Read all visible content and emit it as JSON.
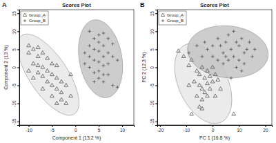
{
  "chart_data": [
    {
      "type": "scatter",
      "panel_label": "A",
      "title": "Scores Plot",
      "x_label": "Component 1 (13.2 %)",
      "y_label": "Component 2 (13 %)",
      "xlim": [
        -12,
        12.5
      ],
      "ylim": [
        -16,
        16
      ],
      "xticks": [
        -10,
        -5,
        0,
        5,
        10
      ],
      "yticks": [
        -15,
        -10,
        -5,
        0,
        5,
        10,
        15
      ],
      "legend": "top-left",
      "series": [
        {
          "name": "Group_A",
          "marker": "triangle",
          "color": "#e8e8e8",
          "x": [
            -10,
            -9,
            -8,
            -10,
            -8,
            -7,
            -6,
            -9,
            -8,
            -7,
            -5,
            -6,
            -4,
            -8,
            -7,
            -5,
            -4,
            -6,
            -3,
            -5,
            -7,
            -4,
            -3,
            -2,
            -5,
            -3,
            -2,
            -1,
            -4,
            -9,
            -1,
            -10
          ],
          "y": [
            6,
            5,
            5.5,
            4,
            3,
            4,
            2.5,
            1,
            0.5,
            0,
            1,
            -1,
            0.5,
            -1.5,
            -2.5,
            -2,
            -3,
            -4,
            -4,
            -5,
            -6,
            -6,
            -7,
            -5,
            -8,
            -9,
            -10,
            -8,
            -10,
            -3,
            -2,
            -1
          ]
        },
        {
          "name": "Group_B",
          "marker": "plus",
          "color": "#c4c4c4",
          "x": [
            3,
            5,
            6,
            4,
            7,
            5,
            3,
            6,
            8,
            4,
            5,
            7,
            2,
            3,
            6,
            8,
            4,
            5,
            6,
            7,
            3,
            5,
            6,
            4,
            7,
            5,
            6,
            8,
            4,
            9,
            2,
            9
          ],
          "y": [
            10,
            9,
            9.5,
            8,
            8,
            7,
            6,
            6,
            6.5,
            5,
            4.5,
            4,
            4,
            3,
            3,
            3,
            2,
            1.5,
            0.5,
            1,
            0,
            -1,
            -2,
            -1.5,
            -2,
            -3,
            -4,
            -5,
            -4,
            -5.5,
            1,
            2
          ]
        }
      ]
    },
    {
      "type": "scatter",
      "panel_label": "B",
      "title": "Scores Plot",
      "x_label": "PC 1 (16.8 %)",
      "y_label": "PC 2 (12.3 %)",
      "xlim": [
        -21,
        22.5
      ],
      "ylim": [
        -16,
        16
      ],
      "xticks": [
        -20,
        -10,
        0,
        10,
        20
      ],
      "yticks": [
        -15,
        -10,
        -5,
        0,
        5,
        10,
        15
      ],
      "legend": "top-left",
      "series": [
        {
          "name": "Group_A",
          "marker": "triangle",
          "color": "#e8e8e8",
          "x": [
            -13,
            -11,
            -9,
            -8,
            -6,
            -4,
            -2,
            0,
            -5,
            -3,
            -1,
            1,
            -7,
            -5,
            -2,
            0,
            2,
            -4,
            -1,
            -3,
            -6,
            -4,
            -2,
            -5,
            -4,
            -8,
            3,
            8,
            -9,
            1
          ],
          "y": [
            4.5,
            3,
            0.5,
            2,
            -1,
            0,
            -1,
            0,
            -2,
            -3,
            -2.5,
            -2,
            -4,
            -5,
            -4.5,
            -4,
            -3.5,
            -6,
            -6,
            -7,
            -8,
            -9,
            -8,
            -11,
            -11.5,
            -13,
            -6,
            -13,
            -5,
            -8
          ]
        },
        {
          "name": "Group_B",
          "marker": "plus",
          "color": "#c4c4c4",
          "x": [
            -9,
            -6,
            -3,
            -2,
            0,
            2,
            3,
            5,
            6,
            8,
            9,
            4,
            7,
            10,
            11,
            12,
            13,
            14,
            6,
            8,
            10,
            9,
            12,
            4,
            2,
            0,
            15,
            16,
            -4,
            7,
            11,
            5
          ],
          "y": [
            4,
            6,
            7,
            5,
            6,
            8,
            6,
            7,
            9,
            10,
            7,
            4,
            5,
            6,
            8,
            4,
            5,
            7,
            2,
            3,
            2,
            0,
            1,
            1,
            2,
            3,
            3,
            5,
            3,
            -3,
            -1,
            3
          ]
        }
      ]
    }
  ]
}
